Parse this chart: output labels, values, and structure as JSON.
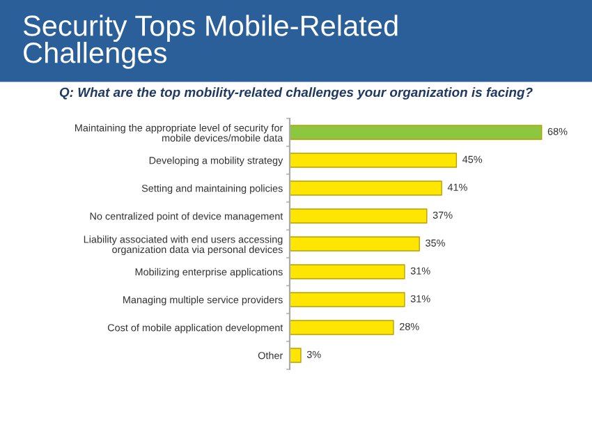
{
  "chart_data": {
    "type": "bar",
    "orientation": "horizontal",
    "title": "Security Tops Mobile-Related\nChallenges",
    "subtitle": "Q: What are the top mobility-related challenges your organization is facing?",
    "categories": [
      "Maintaining the appropriate level of security for\nmobile devices/mobile data",
      "Developing a mobility strategy",
      "Setting and maintaining policies",
      "No centralized point of device management",
      "Liability associated with end users accessing\norganization data via personal devices",
      "Mobilizing enterprise applications",
      "Managing multiple service providers",
      "Cost of mobile application development",
      "Other"
    ],
    "values": [
      68,
      45,
      41,
      37,
      35,
      31,
      31,
      28,
      3
    ],
    "value_labels": [
      "68%",
      "45%",
      "41%",
      "37%",
      "35%",
      "31%",
      "31%",
      "28%",
      "3%"
    ],
    "colors": [
      "#8dc63f",
      "#ffe600",
      "#ffe600",
      "#ffe600",
      "#ffe600",
      "#ffe600",
      "#ffe600",
      "#ffe600",
      "#ffe600"
    ],
    "grid": false,
    "legend": false
  }
}
